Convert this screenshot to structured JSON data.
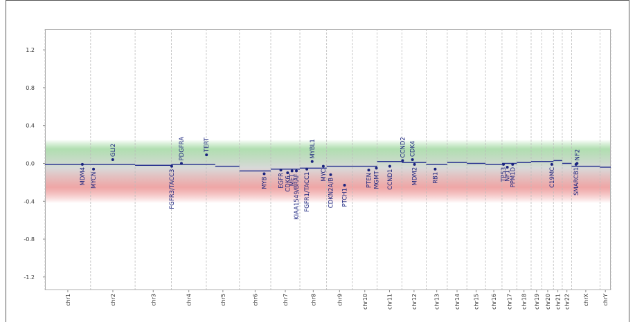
{
  "chart_data": {
    "type": "copy-number",
    "xlim": [
      0,
      3090
    ],
    "ylim": [
      -1.34,
      1.42
    ],
    "yticks": [
      {
        "value": 1.2,
        "label": "1.2"
      },
      0.8,
      0.4,
      {
        "value": 0,
        "label": "0.0"
      },
      -0.4,
      -0.8,
      -1.2
    ],
    "chrom_boundaries": [
      0,
      249,
      492,
      690,
      881,
      1062,
      1233,
      1392,
      1538,
      1679,
      1814,
      1949,
      2082,
      2197,
      2304,
      2406,
      2496,
      2577,
      2655,
      2714,
      2777,
      2825,
      2876,
      3031,
      3090
    ],
    "xticks": [
      {
        "value": 124.5,
        "label": "chr1"
      },
      {
        "value": 370.5,
        "label": "chr2"
      },
      {
        "value": 591,
        "label": "chr3"
      },
      {
        "value": 785.5,
        "label": "chr4"
      },
      {
        "value": 971.5,
        "label": "chr5"
      },
      {
        "value": 1147.5,
        "label": "chr6"
      },
      {
        "value": 1312.5,
        "label": "chr7"
      },
      {
        "value": 1465,
        "label": "chr8"
      },
      {
        "value": 1608.5,
        "label": "chr9"
      },
      {
        "value": 1746.5,
        "label": "chr10"
      },
      {
        "value": 1881.5,
        "label": "chr11"
      },
      {
        "value": 2015.5,
        "label": "chr12"
      },
      {
        "value": 2139.5,
        "label": "chr13"
      },
      {
        "value": 2250.5,
        "label": "chr14"
      },
      {
        "value": 2355,
        "label": "chr15"
      },
      {
        "value": 2451,
        "label": "chr16"
      },
      {
        "value": 2536.5,
        "label": "chr17"
      },
      {
        "value": 2616,
        "label": "chr18"
      },
      {
        "value": 2684.5,
        "label": "chr19"
      },
      {
        "value": 2745.5,
        "label": "chr20"
      },
      {
        "value": 2801,
        "label": "chr21"
      },
      {
        "value": 2850.5,
        "label": "chr22"
      },
      {
        "value": 2953.5,
        "label": "chrX"
      },
      {
        "value": 3060.5,
        "label": "chrY"
      }
    ],
    "segments": {
      "color": "#2b3590",
      "start": [
        0,
        249,
        492,
        690,
        930,
        1062,
        1233,
        1392,
        1538,
        1679,
        1814,
        1949,
        2082,
        2197,
        2304,
        2406,
        2496,
        2577,
        2655,
        2714,
        2777,
        2825,
        2876,
        3031
      ],
      "end": [
        249,
        492,
        690,
        930,
        1062,
        1233,
        1392,
        1538,
        1679,
        1814,
        1949,
        2082,
        2197,
        2304,
        2406,
        2496,
        2577,
        2655,
        2714,
        2777,
        2825,
        2876,
        3031,
        3090
      ],
      "values": [
        -0.01,
        -0.01,
        -0.02,
        -0.01,
        -0.03,
        -0.08,
        -0.06,
        -0.05,
        -0.03,
        -0.03,
        0.02,
        0.01,
        -0.01,
        0.01,
        0.0,
        -0.01,
        0.0,
        0.01,
        0.02,
        0.02,
        0.03,
        0.0,
        -0.03,
        -0.04
      ]
    },
    "genes": {
      "color": "#1a237e",
      "names": [
        "MDM4",
        "MYCN",
        "GLI2",
        "FGFR3/TACC3",
        "PDGFRA",
        "TERT",
        "MYB",
        "EGFR",
        "CDK6",
        "MET",
        "KIAA1549/BRAF",
        "FGFR1/TACC1",
        "MYBL1",
        "MYC",
        "CDKN2A/B",
        "PTCH1",
        "PTEN",
        "MGMT",
        "CCND1",
        "CCND2",
        "CDK4",
        "MDM2",
        "RB1",
        "TP53",
        "NF1",
        "PPM1D",
        "C19MC",
        "SMARCB1",
        "NF2"
      ],
      "x": [
        204,
        265,
        370,
        692,
        745,
        882,
        1197,
        1288,
        1325,
        1349,
        1373,
        1430,
        1459,
        1520,
        1560,
        1636,
        1768,
        1810,
        1883,
        1953,
        2007,
        2018,
        2131,
        2504,
        2525,
        2554,
        2768,
        2900,
        2906
      ],
      "values": [
        -0.01,
        -0.06,
        0.04,
        -0.03,
        0.0,
        0.09,
        -0.11,
        -0.07,
        -0.1,
        -0.08,
        -0.08,
        -0.06,
        0.02,
        -0.03,
        -0.12,
        -0.23,
        -0.07,
        -0.05,
        -0.03,
        0.03,
        0.04,
        -0.01,
        -0.06,
        -0.01,
        -0.04,
        -0.01,
        -0.01,
        -0.01,
        0.0
      ]
    }
  }
}
